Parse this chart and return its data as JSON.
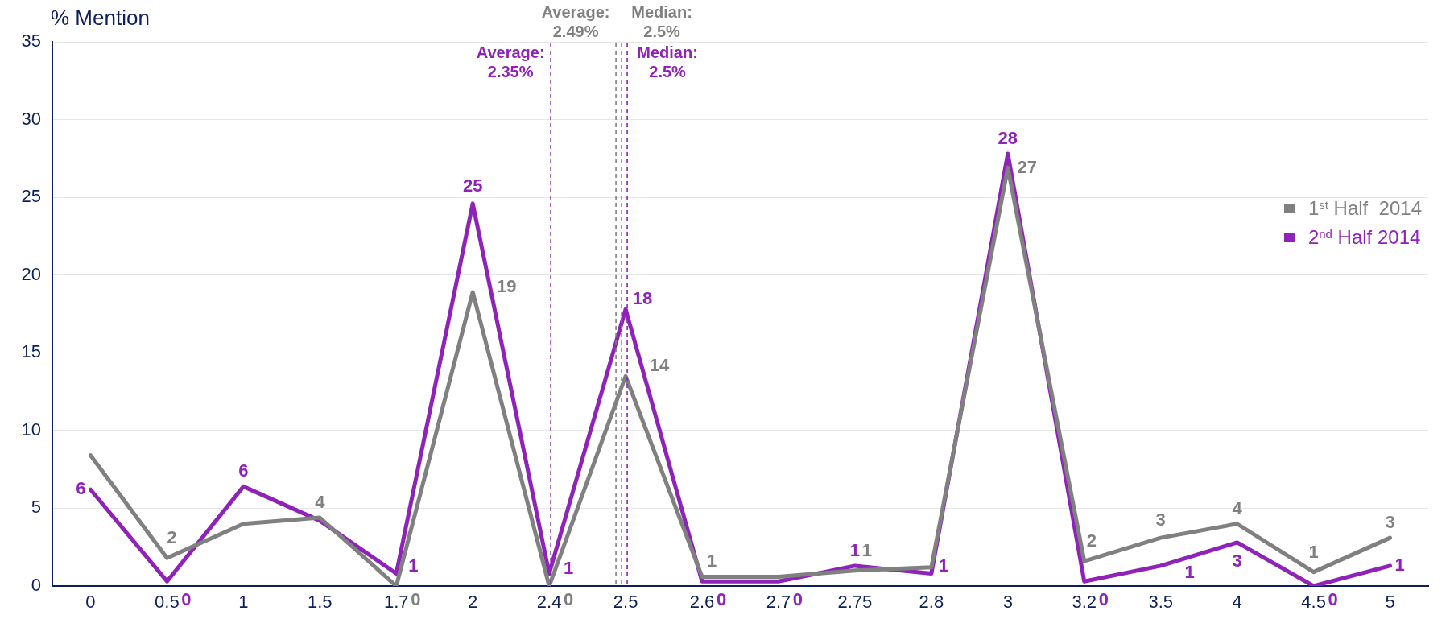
{
  "chart_data": {
    "type": "line",
    "ylabel": "% Mention",
    "categories": [
      "0",
      "0.5",
      "1",
      "1.5",
      "1.7",
      "2",
      "2.4",
      "2.5",
      "2.6",
      "2.7",
      "2.75",
      "2.8",
      "3",
      "3.2",
      "3.5",
      "4",
      "4.5",
      "5"
    ],
    "series": [
      {
        "name": "1$^{st}$ Half  2014",
        "color": "#808080",
        "values": [
          8.4,
          1.8,
          4.0,
          4.4,
          0,
          18.9,
          0,
          13.5,
          0.6,
          0.6,
          1.0,
          1.2,
          26.9,
          1.6,
          3.1,
          4.0,
          0.9,
          3.1
        ],
        "value_labels": [
          null,
          "2",
          null,
          "4",
          "0",
          "19",
          "0",
          "14",
          "1",
          null,
          "1",
          null,
          "27",
          "2",
          "3",
          "4",
          "1",
          "3"
        ]
      },
      {
        "name": "2$^{nd}$ Half 2014",
        "color": "#8f22b8",
        "values": [
          6.2,
          0.3,
          6.4,
          4.2,
          0.8,
          24.6,
          0.8,
          17.8,
          0.3,
          0.3,
          1.3,
          0.8,
          27.8,
          0.3,
          1.3,
          2.8,
          0,
          1.3
        ],
        "value_labels": [
          "6",
          "0",
          "6",
          null,
          "1",
          "25",
          "1",
          "18",
          "0",
          "0",
          "1",
          "1",
          "28",
          "0",
          "1",
          "3",
          "0",
          "1"
        ]
      }
    ],
    "ylim": [
      0,
      35
    ],
    "yticks": [
      0,
      5,
      10,
      15,
      20,
      25,
      30,
      35
    ],
    "ref_lines": [
      {
        "axis": "x",
        "value": "2.5",
        "label": "Average: 2.49%",
        "color": "#808080",
        "line_style": "dashed"
      },
      {
        "axis": "x",
        "value": "2.5",
        "label": "Median: 2.5%",
        "color": "#808080",
        "line_style": "dashed"
      },
      {
        "axis": "x",
        "value": "2.4",
        "label": "Average: 2.35%",
        "color": "#8f22b8",
        "line_style": "dashed"
      },
      {
        "axis": "x",
        "value": "2.5",
        "label": "Median: 2.5%",
        "color": "#8f22b8",
        "line_style": "dashed"
      }
    ],
    "grid": "y",
    "legend": "right",
    "marker": "none",
    "line_style": "solid"
  }
}
